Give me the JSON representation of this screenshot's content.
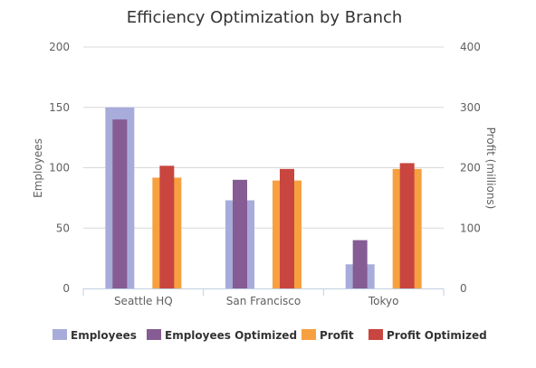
{
  "chart_data": {
    "type": "bar",
    "title": "Efficiency Optimization by Branch",
    "categories": [
      "Seattle HQ",
      "San Francisco",
      "Tokyo"
    ],
    "y_axis_left": {
      "label": "Employees",
      "min": 0,
      "max": 200,
      "ticks": [
        0,
        50,
        100,
        150,
        200
      ]
    },
    "y_axis_right": {
      "label": "Profit (millions)",
      "min": 0,
      "max": 400,
      "ticks": [
        0,
        100,
        200,
        300,
        400
      ]
    },
    "grid": true,
    "legend_position": "bottom",
    "series": [
      {
        "name": "Employees",
        "axis": "left",
        "color": "#a8acda",
        "values": [
          150,
          73,
          20
        ]
      },
      {
        "name": "Employees Optimized",
        "axis": "left",
        "color": "#865c94",
        "values": [
          140,
          90,
          40
        ]
      },
      {
        "name": "Profit",
        "axis": "right",
        "color": "#f7a040",
        "values": [
          183.6,
          178.8,
          198
        ]
      },
      {
        "name": "Profit Optimized",
        "axis": "right",
        "color": "#c8463f",
        "values": [
          203.2,
          198,
          207.6
        ]
      }
    ]
  }
}
